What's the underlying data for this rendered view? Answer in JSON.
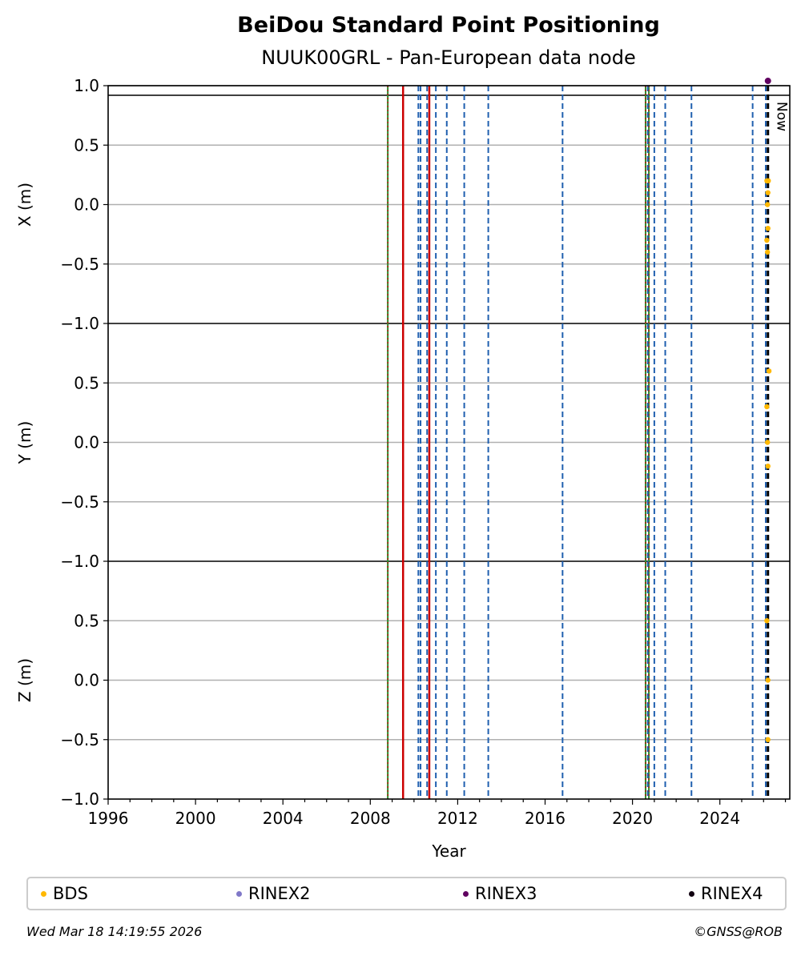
{
  "chart_data": {
    "type": "scatter",
    "title": "BeiDou Standard Point Positioning",
    "subtitle": "NUUK00GRL - Pan-European data node",
    "xlabel": "Year",
    "xlim": [
      1996.0,
      2027.2
    ],
    "x_ticks": [
      1996,
      2000,
      2004,
      2008,
      2012,
      2016,
      2020,
      2024
    ],
    "x_tick_labels": [
      "1996",
      "2000",
      "2004",
      "2008",
      "2012",
      "2016",
      "2020",
      "2024"
    ],
    "grid": true,
    "panels": [
      {
        "ylabel": "X (m)",
        "ylim": [
          -1.0,
          1.0
        ],
        "y_ticks": [
          -0.5,
          0.0,
          0.5,
          1.0
        ],
        "y_tick_labels": [
          "−0.5",
          "0.0",
          "0.5",
          "1.0"
        ],
        "bottom_tick_label": "−1.0",
        "series": [
          {
            "name": "BDS",
            "x": [
              2026.15,
              2026.2,
              2026.18,
              2026.2,
              2026.15,
              2026.18,
              2026.22
            ],
            "y": [
              0.2,
              0.1,
              0.0,
              -0.2,
              -0.3,
              -0.4,
              0.2
            ]
          },
          {
            "name": "RINEX3",
            "x": [
              2026.2
            ],
            "y": [
              1.04
            ]
          }
        ]
      },
      {
        "ylabel": "Y (m)",
        "ylim": [
          -1.0,
          1.0
        ],
        "y_ticks": [
          -0.5,
          0.0,
          0.5
        ],
        "y_tick_labels": [
          "−0.5",
          "0.0",
          "0.5"
        ],
        "bottom_tick_label": "−1.0",
        "series": [
          {
            "name": "BDS",
            "x": [
              2026.25,
              2026.15,
              2026.18,
              2026.2
            ],
            "y": [
              0.6,
              0.3,
              0.0,
              -0.2
            ]
          }
        ]
      },
      {
        "ylabel": "Z (m)",
        "ylim": [
          -1.0,
          1.0
        ],
        "y_ticks": [
          -1.0,
          -0.5,
          0.0,
          0.5
        ],
        "y_tick_labels": [
          "−1.0",
          "−0.5",
          "0.0",
          "0.5"
        ],
        "bottom_tick_label": "",
        "series": [
          {
            "name": "BDS",
            "x": [
              2026.15,
              2026.2,
              2026.2
            ],
            "y": [
              0.5,
              0.0,
              -0.5
            ]
          }
        ]
      }
    ],
    "event_lines": {
      "blue_dashed": [
        2009.5,
        2010.2,
        2010.3,
        2010.6,
        2011.0,
        2011.5,
        2012.3,
        2013.4,
        2016.8,
        2020.7,
        2021.0,
        2021.5,
        2022.7,
        2025.5,
        2026.1
      ],
      "green_dotted": [
        2008.8,
        2020.6,
        2020.75
      ],
      "red_solid": [
        2009.5,
        2010.7
      ],
      "black_dashed": [
        2026.2
      ]
    },
    "now_label": "Now",
    "legend": [
      {
        "name": "BDS",
        "color": "#FFB800"
      },
      {
        "name": "RINEX2",
        "color": "#8078C8"
      },
      {
        "name": "RINEX3",
        "color": "#600060"
      },
      {
        "name": "RINEX4",
        "color": "#100010"
      }
    ],
    "legend_position": "bottom",
    "colors": {
      "bds": "#FFB800",
      "rinex3": "#600060",
      "event_blue": "#1F5FAF",
      "event_green": "#2E8B2E",
      "event_red": "#CC0000",
      "grid": "#B0B0B0"
    }
  },
  "footer": {
    "timestamp": "Wed Mar 18 14:19:55 2026",
    "credit": "©GNSS@ROB"
  }
}
